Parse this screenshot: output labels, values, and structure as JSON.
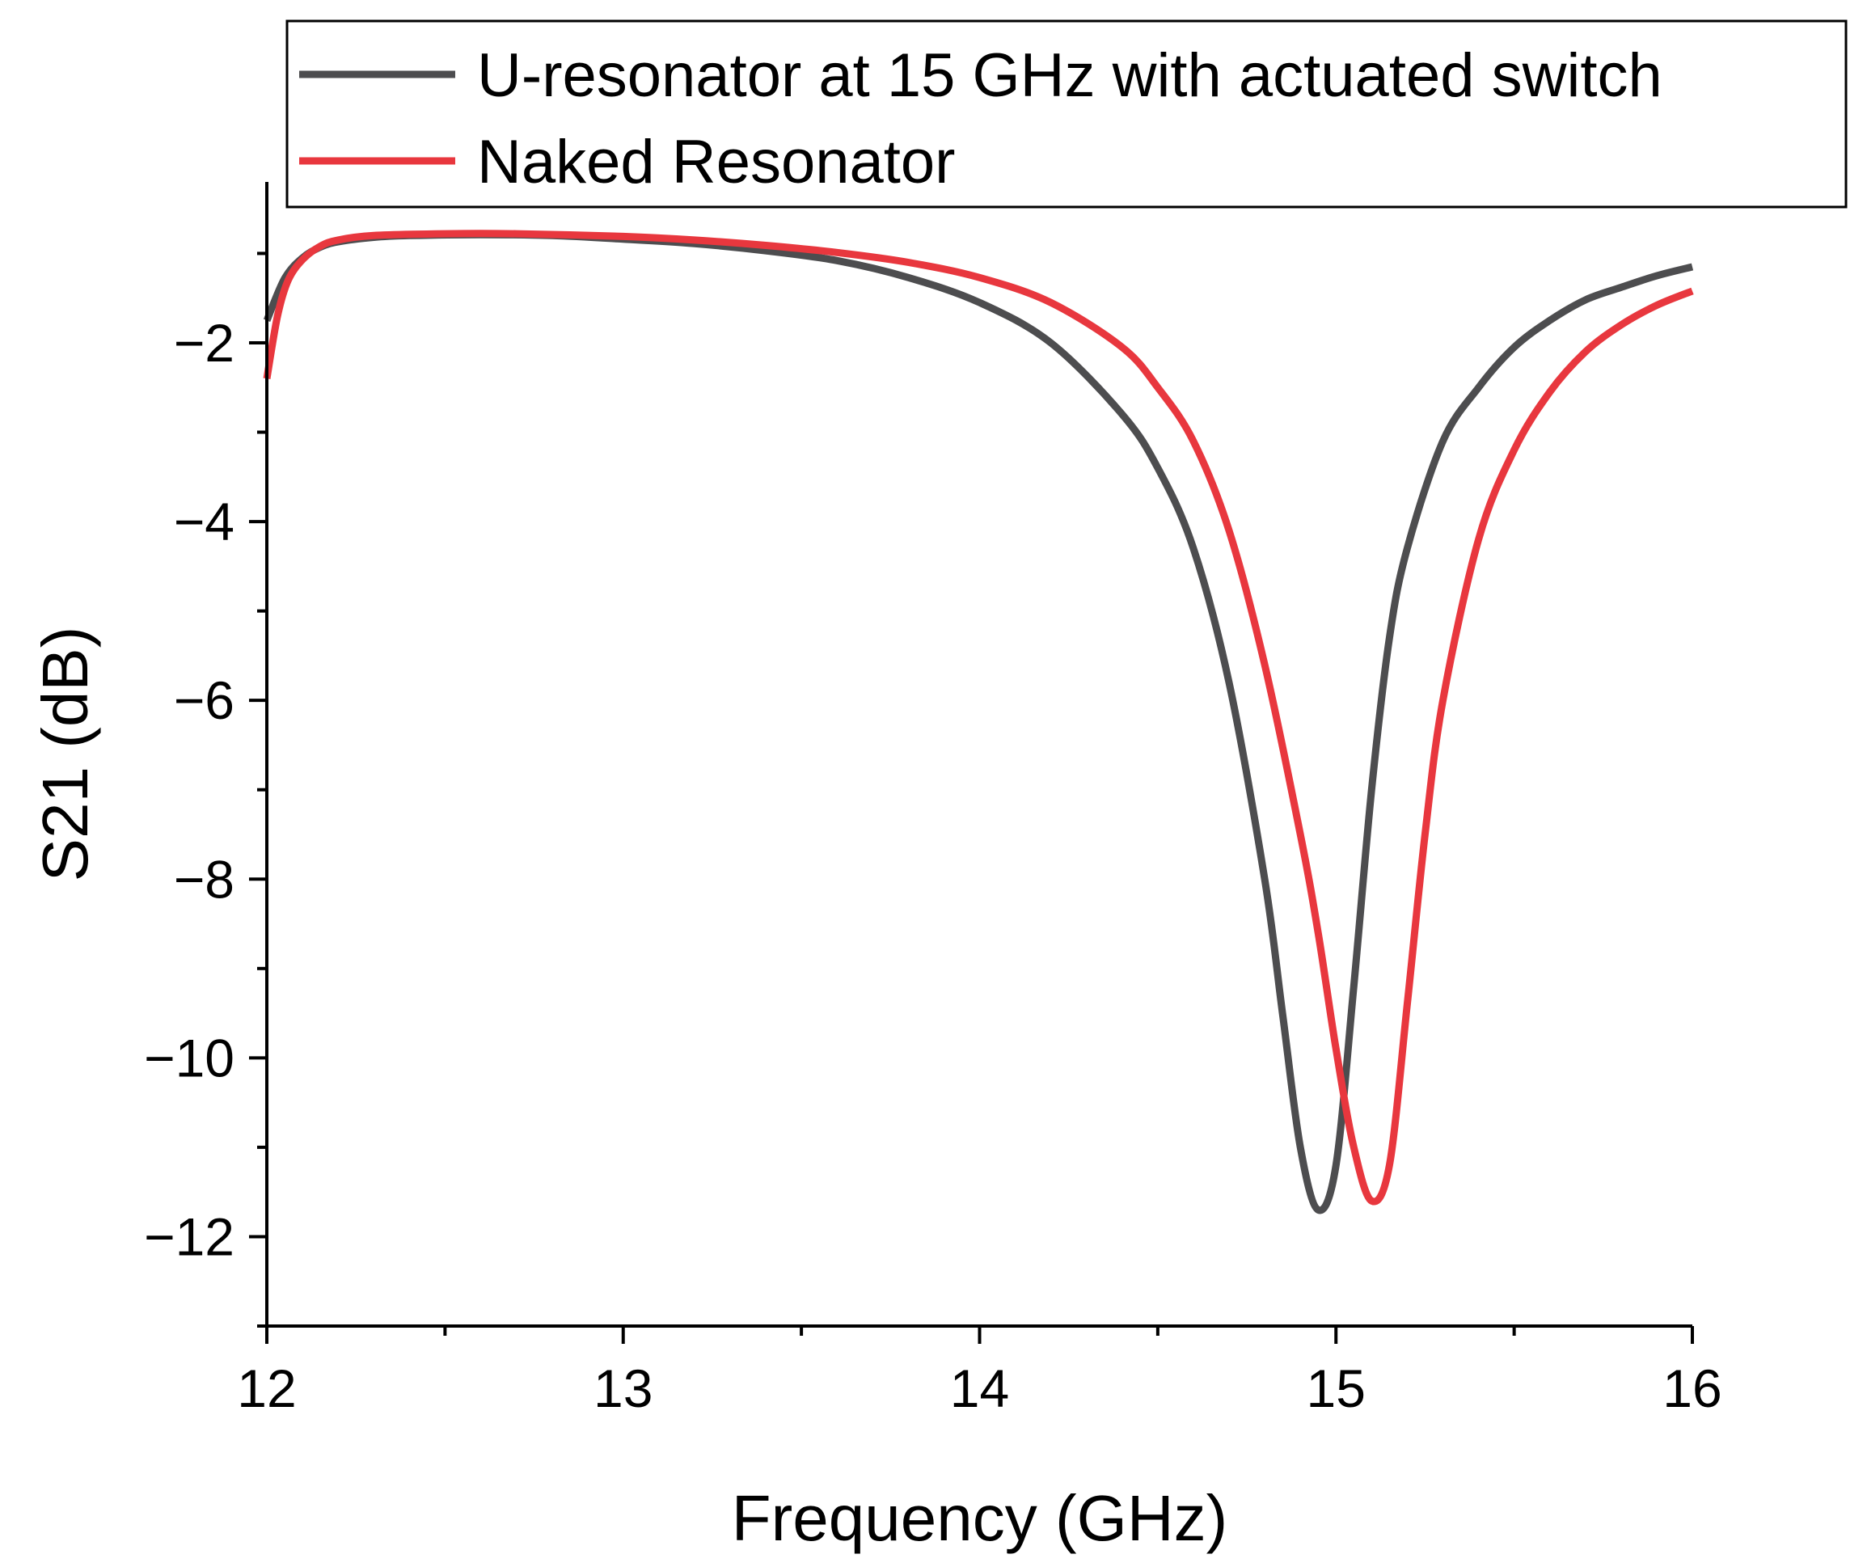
{
  "chart_data": {
    "type": "line",
    "xlabel": "Frequency (GHz)",
    "ylabel": "S21 (dB)",
    "xlim": [
      12,
      16
    ],
    "ylim": [
      -13,
      -0.2
    ],
    "x_ticks": [
      12,
      13,
      14,
      15,
      16
    ],
    "x_tick_labels": [
      "12",
      "13",
      "14",
      "15",
      "16"
    ],
    "x_minor_ticks": [
      12.5,
      13.5,
      14.5,
      15.5
    ],
    "y_ticks": [
      -2,
      -4,
      -6,
      -8,
      -10,
      -12
    ],
    "y_tick_labels": [
      "−2",
      "−4",
      "−6",
      "−8",
      "−10",
      "−12"
    ],
    "y_minor_ticks": [
      -1,
      -3,
      -5,
      -7,
      -9,
      -11,
      -13
    ],
    "grid": false,
    "legend_placement": "top-right",
    "series": [
      {
        "name": "U-resonator at 15 GHz with actuated switch",
        "color": "#4d4d4f",
        "points": [
          [
            12.0,
            -1.75
          ],
          [
            12.05,
            -1.28
          ],
          [
            12.1,
            -1.05
          ],
          [
            12.15,
            -0.93
          ],
          [
            12.2,
            -0.87
          ],
          [
            12.3,
            -0.82
          ],
          [
            12.4,
            -0.8
          ],
          [
            12.6,
            -0.79
          ],
          [
            12.8,
            -0.8
          ],
          [
            13.0,
            -0.84
          ],
          [
            13.2,
            -0.89
          ],
          [
            13.4,
            -0.97
          ],
          [
            13.6,
            -1.08
          ],
          [
            13.8,
            -1.27
          ],
          [
            14.0,
            -1.55
          ],
          [
            14.2,
            -2.0
          ],
          [
            14.4,
            -2.8
          ],
          [
            14.5,
            -3.4
          ],
          [
            14.6,
            -4.3
          ],
          [
            14.7,
            -5.8
          ],
          [
            14.8,
            -8.0
          ],
          [
            14.85,
            -9.5
          ],
          [
            14.9,
            -11.0
          ],
          [
            14.95,
            -11.7
          ],
          [
            15.0,
            -11.2
          ],
          [
            15.05,
            -9.2
          ],
          [
            15.1,
            -7.0
          ],
          [
            15.15,
            -5.3
          ],
          [
            15.2,
            -4.3
          ],
          [
            15.3,
            -3.1
          ],
          [
            15.4,
            -2.5
          ],
          [
            15.5,
            -2.05
          ],
          [
            15.6,
            -1.75
          ],
          [
            15.7,
            -1.52
          ],
          [
            15.8,
            -1.38
          ],
          [
            15.9,
            -1.25
          ],
          [
            16.0,
            -1.15
          ]
        ]
      },
      {
        "name": "Naked Resonator",
        "color": "#e8373e",
        "points": [
          [
            12.0,
            -2.4
          ],
          [
            12.03,
            -1.7
          ],
          [
            12.06,
            -1.3
          ],
          [
            12.1,
            -1.07
          ],
          [
            12.15,
            -0.92
          ],
          [
            12.2,
            -0.85
          ],
          [
            12.3,
            -0.8
          ],
          [
            12.5,
            -0.78
          ],
          [
            12.7,
            -0.78
          ],
          [
            13.0,
            -0.81
          ],
          [
            13.2,
            -0.85
          ],
          [
            13.4,
            -0.91
          ],
          [
            13.6,
            -0.99
          ],
          [
            13.8,
            -1.1
          ],
          [
            14.0,
            -1.27
          ],
          [
            14.2,
            -1.55
          ],
          [
            14.4,
            -2.05
          ],
          [
            14.5,
            -2.5
          ],
          [
            14.6,
            -3.1
          ],
          [
            14.7,
            -4.1
          ],
          [
            14.8,
            -5.6
          ],
          [
            14.9,
            -7.5
          ],
          [
            14.95,
            -8.6
          ],
          [
            15.0,
            -9.9
          ],
          [
            15.05,
            -11.0
          ],
          [
            15.1,
            -11.6
          ],
          [
            15.15,
            -11.2
          ],
          [
            15.2,
            -9.4
          ],
          [
            15.25,
            -7.5
          ],
          [
            15.3,
            -6.0
          ],
          [
            15.4,
            -4.2
          ],
          [
            15.5,
            -3.2
          ],
          [
            15.6,
            -2.55
          ],
          [
            15.7,
            -2.1
          ],
          [
            15.8,
            -1.8
          ],
          [
            15.9,
            -1.58
          ],
          [
            16.0,
            -1.42
          ]
        ]
      }
    ]
  }
}
